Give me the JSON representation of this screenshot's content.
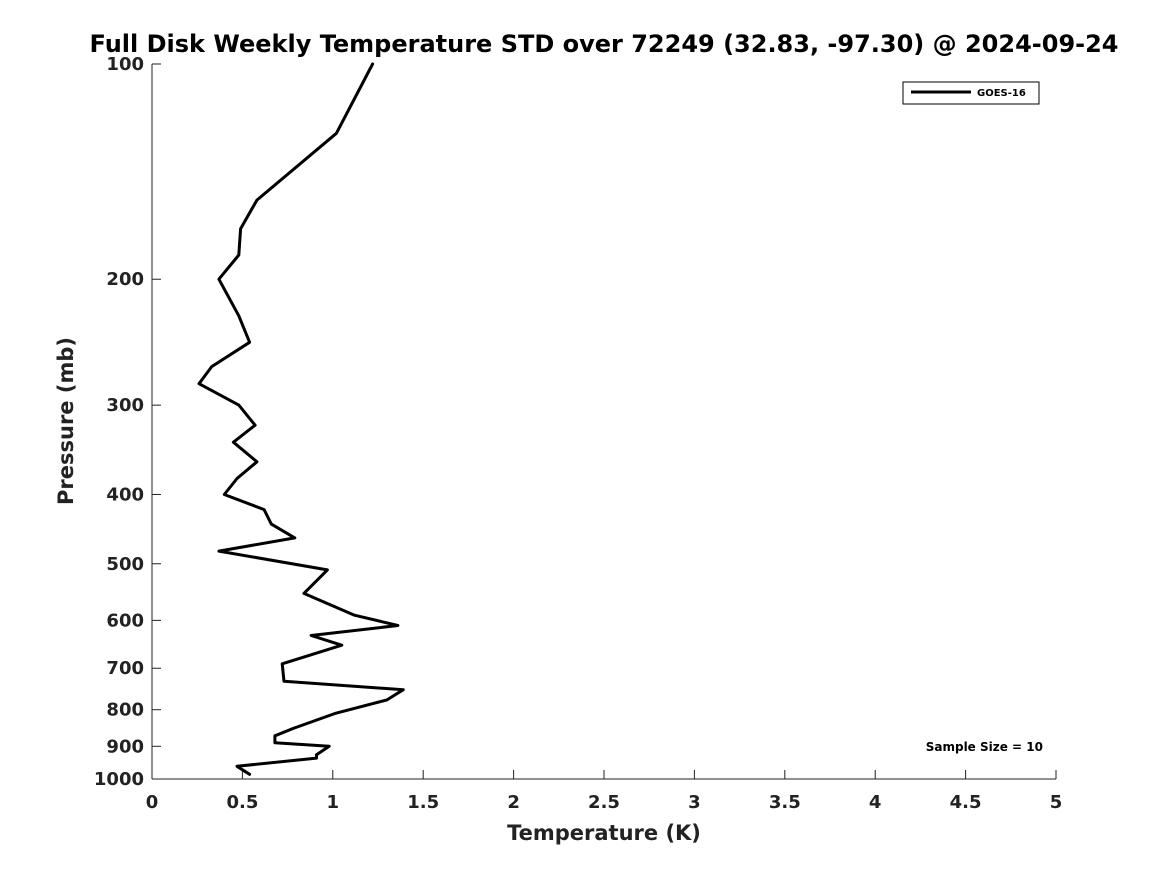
{
  "chart_data": {
    "type": "line",
    "title": "Full Disk Weekly Temperature STD over 72249 (32.83, -97.30) @ 2024-09-24",
    "xlabel": "Temperature (K)",
    "ylabel": "Pressure (mb)",
    "xlim": [
      0,
      5
    ],
    "ylim": [
      1000,
      100
    ],
    "y_scale": "log",
    "y_reversed": true,
    "grid": false,
    "legend_position": "top-right",
    "x_ticks": [
      "0",
      "0.5",
      "1",
      "1.5",
      "2",
      "2.5",
      "3",
      "3.5",
      "4",
      "4.5",
      "5"
    ],
    "y_ticks": [
      "100",
      "200",
      "300",
      "400",
      "500",
      "600",
      "700",
      "800",
      "900",
      "1000"
    ],
    "series": [
      {
        "name": "GOES-16",
        "color": "#000000",
        "points": [
          [
            1.22,
            100
          ],
          [
            1.02,
            125
          ],
          [
            0.58,
            155
          ],
          [
            0.49,
            170
          ],
          [
            0.48,
            185
          ],
          [
            0.37,
            200
          ],
          [
            0.48,
            225
          ],
          [
            0.54,
            245
          ],
          [
            0.33,
            265
          ],
          [
            0.26,
            280
          ],
          [
            0.48,
            300
          ],
          [
            0.57,
            320
          ],
          [
            0.45,
            338
          ],
          [
            0.58,
            360
          ],
          [
            0.47,
            380
          ],
          [
            0.4,
            400
          ],
          [
            0.62,
            420
          ],
          [
            0.66,
            440
          ],
          [
            0.79,
            460
          ],
          [
            0.37,
            480
          ],
          [
            0.97,
            510
          ],
          [
            0.84,
            550
          ],
          [
            1.12,
            590
          ],
          [
            1.36,
            610
          ],
          [
            0.88,
            630
          ],
          [
            1.05,
            650
          ],
          [
            0.72,
            690
          ],
          [
            0.73,
            730
          ],
          [
            1.39,
            750
          ],
          [
            1.3,
            775
          ],
          [
            1.01,
            810
          ],
          [
            0.78,
            850
          ],
          [
            0.68,
            870
          ],
          [
            0.68,
            890
          ],
          [
            0.98,
            900
          ],
          [
            0.91,
            925
          ],
          [
            0.91,
            935
          ],
          [
            0.47,
            960
          ],
          [
            0.54,
            985
          ]
        ]
      }
    ],
    "annotations": [
      {
        "text": "Sample Size = 10",
        "position": "bottom-right"
      }
    ]
  }
}
